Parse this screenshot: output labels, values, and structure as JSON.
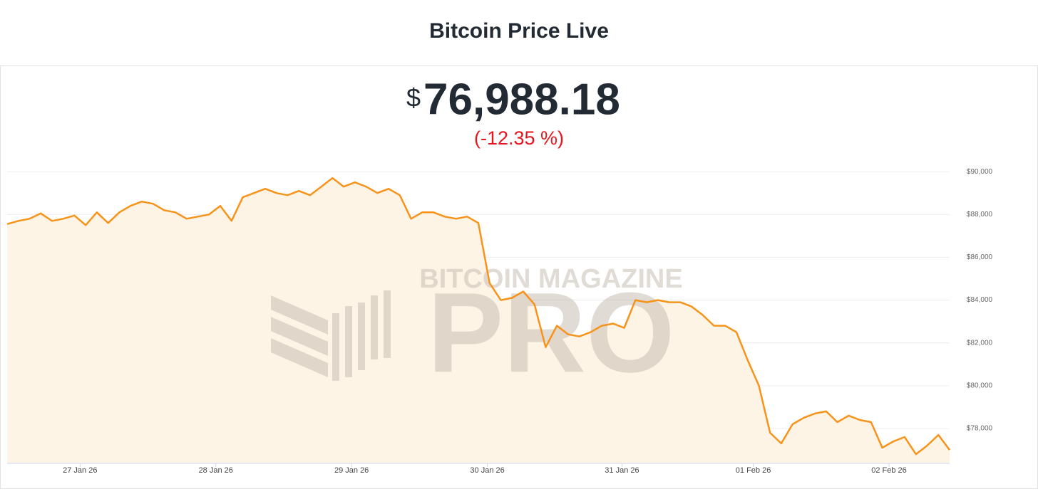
{
  "header": {
    "title": "Bitcoin Price Live"
  },
  "ticker": {
    "currency": "$",
    "price": "76,988.18",
    "change": "(-12.35 %)"
  },
  "watermark": {
    "top": "BITCOIN MAGAZINE",
    "bottom": "PRO"
  },
  "chart_data": {
    "type": "line",
    "series": [
      {
        "name": "Bitcoin Price",
        "color": "#f7931a",
        "area_color": "#fdf4e6",
        "values": [
          87550,
          87700,
          87800,
          88050,
          87700,
          87800,
          87950,
          87500,
          88100,
          87600,
          88100,
          88400,
          88600,
          88500,
          88200,
          88100,
          87800,
          87900,
          88000,
          88400,
          87700,
          88800,
          89000,
          89200,
          89000,
          88900,
          89100,
          88900,
          89300,
          89700,
          89300,
          89500,
          89300,
          89000,
          89200,
          88900,
          87800,
          88100,
          88100,
          87900,
          87800,
          87900,
          87600,
          84800,
          84000,
          84100,
          84400,
          83800,
          81800,
          82800,
          82400,
          82300,
          82500,
          82800,
          82900,
          82700,
          84000,
          83900,
          84000,
          83900,
          83900,
          83700,
          83300,
          82800,
          82800,
          82500,
          81200,
          80000,
          77800,
          77300,
          78200,
          78500,
          78700,
          78800,
          78300,
          78600,
          78400,
          78300,
          77100,
          77400,
          77600,
          76800,
          77200,
          77700,
          77000
        ]
      }
    ],
    "xlim": [
      0,
      84
    ],
    "xticks": [
      {
        "value": 6.5,
        "label": "27 Jan 26"
      },
      {
        "value": 18.6,
        "label": "28 Jan 26"
      },
      {
        "value": 30.7,
        "label": "29 Jan 26"
      },
      {
        "value": 42.8,
        "label": "30 Jan 26"
      },
      {
        "value": 54.8,
        "label": "31 Jan 26"
      },
      {
        "value": 66.5,
        "label": "01 Feb 26"
      },
      {
        "value": 78.6,
        "label": "02 Feb 26"
      }
    ],
    "ylim": [
      76370,
      90370
    ],
    "yticks": [
      {
        "value": 78000,
        "label": "$78,000"
      },
      {
        "value": 80000,
        "label": "$80,000"
      },
      {
        "value": 82000,
        "label": "$82,000"
      },
      {
        "value": 84000,
        "label": "$84,000"
      },
      {
        "value": 86000,
        "label": "$86,000"
      },
      {
        "value": 88000,
        "label": "$88,000"
      },
      {
        "value": 90000,
        "label": "$90,000"
      }
    ],
    "grid": true
  }
}
